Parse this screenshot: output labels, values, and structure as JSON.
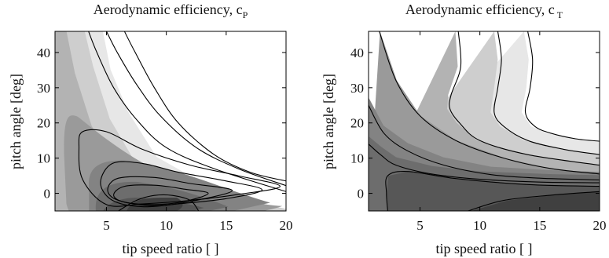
{
  "chart_data": [
    {
      "type": "contour",
      "title": "Aerodynamic efficiency, c",
      "title_subscript": "P",
      "xlabel": "tip speed ratio [ ]",
      "ylabel": "pitch angle [deg]",
      "xlim": [
        0.7,
        20
      ],
      "ylim": [
        -5,
        46
      ],
      "xticks": [
        5,
        10,
        15,
        20
      ],
      "yticks": [
        0,
        10,
        20,
        30,
        40
      ],
      "grid": false,
      "fill": "grayscale, darker = higher value",
      "region_colors": [
        "#ffffff",
        "#e7e7e7",
        "#cecece",
        "#b3b3b3",
        "#9a9a9a",
        "#838383",
        "#6d6d6d",
        "#575757"
      ],
      "contour_lines": [
        {
          "x": [
            3.5,
            4.2,
            5.6,
            7.5,
            10,
            14,
            20
          ],
          "y": [
            46,
            40,
            30,
            21,
            13,
            7,
            0.5
          ]
        },
        {
          "x": [
            5.0,
            5.9,
            7.5,
            9.5,
            12.5,
            16,
            20
          ],
          "y": [
            46,
            40,
            31,
            22,
            13,
            7,
            2.2
          ]
        },
        {
          "x": [
            6.5,
            7.4,
            9.0,
            11.0,
            14,
            17,
            20
          ],
          "y": [
            46,
            40,
            30,
            20,
            11,
            6,
            3.5
          ]
        },
        {
          "closed": true,
          "x": [
            2.7,
            3.0,
            5,
            8,
            12,
            16,
            19.5,
            16,
            12,
            8,
            5,
            3.0
          ],
          "y": [
            13,
            17.5,
            17.5,
            12.5,
            8,
            5,
            2,
            -0.3,
            -2,
            -3,
            -3.2,
            4
          ]
        },
        {
          "closed": true,
          "x": [
            4.5,
            5.5,
            8,
            11,
            15,
            18,
            15,
            11,
            8,
            5.5
          ],
          "y": [
            3,
            8.5,
            8.5,
            6,
            3.5,
            1,
            -1.5,
            -3,
            -3.8,
            -2
          ]
        },
        {
          "closed": true,
          "x": [
            5.1,
            6,
            9,
            12,
            15.5,
            12,
            9,
            6
          ],
          "y": [
            1,
            4.3,
            4.5,
            2.8,
            0.8,
            -2.3,
            -3.5,
            -2
          ]
        },
        {
          "closed": true,
          "x": [
            5.6,
            6.5,
            9,
            11.5,
            13.5,
            11.5,
            9,
            6.5
          ],
          "y": [
            -0.5,
            2,
            2.3,
            1.2,
            0,
            -2.3,
            -3.2,
            -2.5
          ]
        },
        {
          "x": [
            6.0,
            7.5,
            9,
            10.5,
            12,
            12.7
          ],
          "y": [
            -5,
            -2,
            -0.6,
            -0.6,
            -2,
            -5
          ]
        }
      ]
    },
    {
      "type": "contour",
      "title": "Aerodynamic efficiency, c",
      "title_subscript": "T",
      "xlabel": "tip speed ratio [ ]",
      "ylabel": "pitch angle [deg]",
      "xlim": [
        0.7,
        20
      ],
      "ylim": [
        -5,
        46
      ],
      "xticks": [
        5,
        10,
        15,
        20
      ],
      "yticks": [
        0,
        10,
        20,
        30,
        40
      ],
      "grid": false,
      "fill": "grayscale, darker = higher value",
      "region_colors": [
        "#ffffff",
        "#e7e7e7",
        "#cecece",
        "#b3b3b3",
        "#9a9a9a",
        "#838383",
        "#6d6d6d",
        "#575757",
        "#404040"
      ],
      "contour_lines": [
        {
          "x": [
            14,
            14.4,
            14.2,
            13.8,
            14.6,
            16,
            18,
            20
          ],
          "y": [
            46,
            38,
            30,
            23,
            19,
            17,
            15.5,
            14.8
          ]
        },
        {
          "x": [
            11.5,
            11.8,
            11.5,
            11.2,
            12,
            14,
            17,
            20
          ],
          "y": [
            46,
            38,
            30,
            23,
            19,
            15,
            12.5,
            11
          ]
        },
        {
          "x": [
            8.2,
            8.4,
            7.6,
            7.5,
            8.3,
            10,
            14,
            20
          ],
          "y": [
            46,
            36,
            28,
            24,
            20,
            15,
            11,
            8
          ]
        },
        {
          "x": [
            1.6,
            3,
            5,
            8,
            12,
            16,
            20
          ],
          "y": [
            46,
            32,
            22,
            15,
            10,
            7,
            5.5
          ]
        },
        {
          "x": [
            0.7,
            2,
            4,
            7,
            11,
            15,
            20
          ],
          "y": [
            25,
            17,
            12,
            8,
            5.3,
            4.3,
            3.8
          ]
        },
        {
          "x": [
            0.7,
            1.7,
            3,
            6,
            10,
            15,
            20
          ],
          "y": [
            14,
            11,
            8,
            5.5,
            4,
            3.2,
            3
          ]
        },
        {
          "x": [
            2.3,
            2.2,
            2.3,
            4,
            8,
            14,
            20
          ],
          "y": [
            -5,
            0,
            5,
            6.2,
            4.2,
            2.5,
            2
          ]
        },
        {
          "x": [
            9,
            12,
            16,
            20
          ],
          "y": [
            -5,
            -2,
            -0.5,
            0.5
          ]
        }
      ]
    }
  ]
}
